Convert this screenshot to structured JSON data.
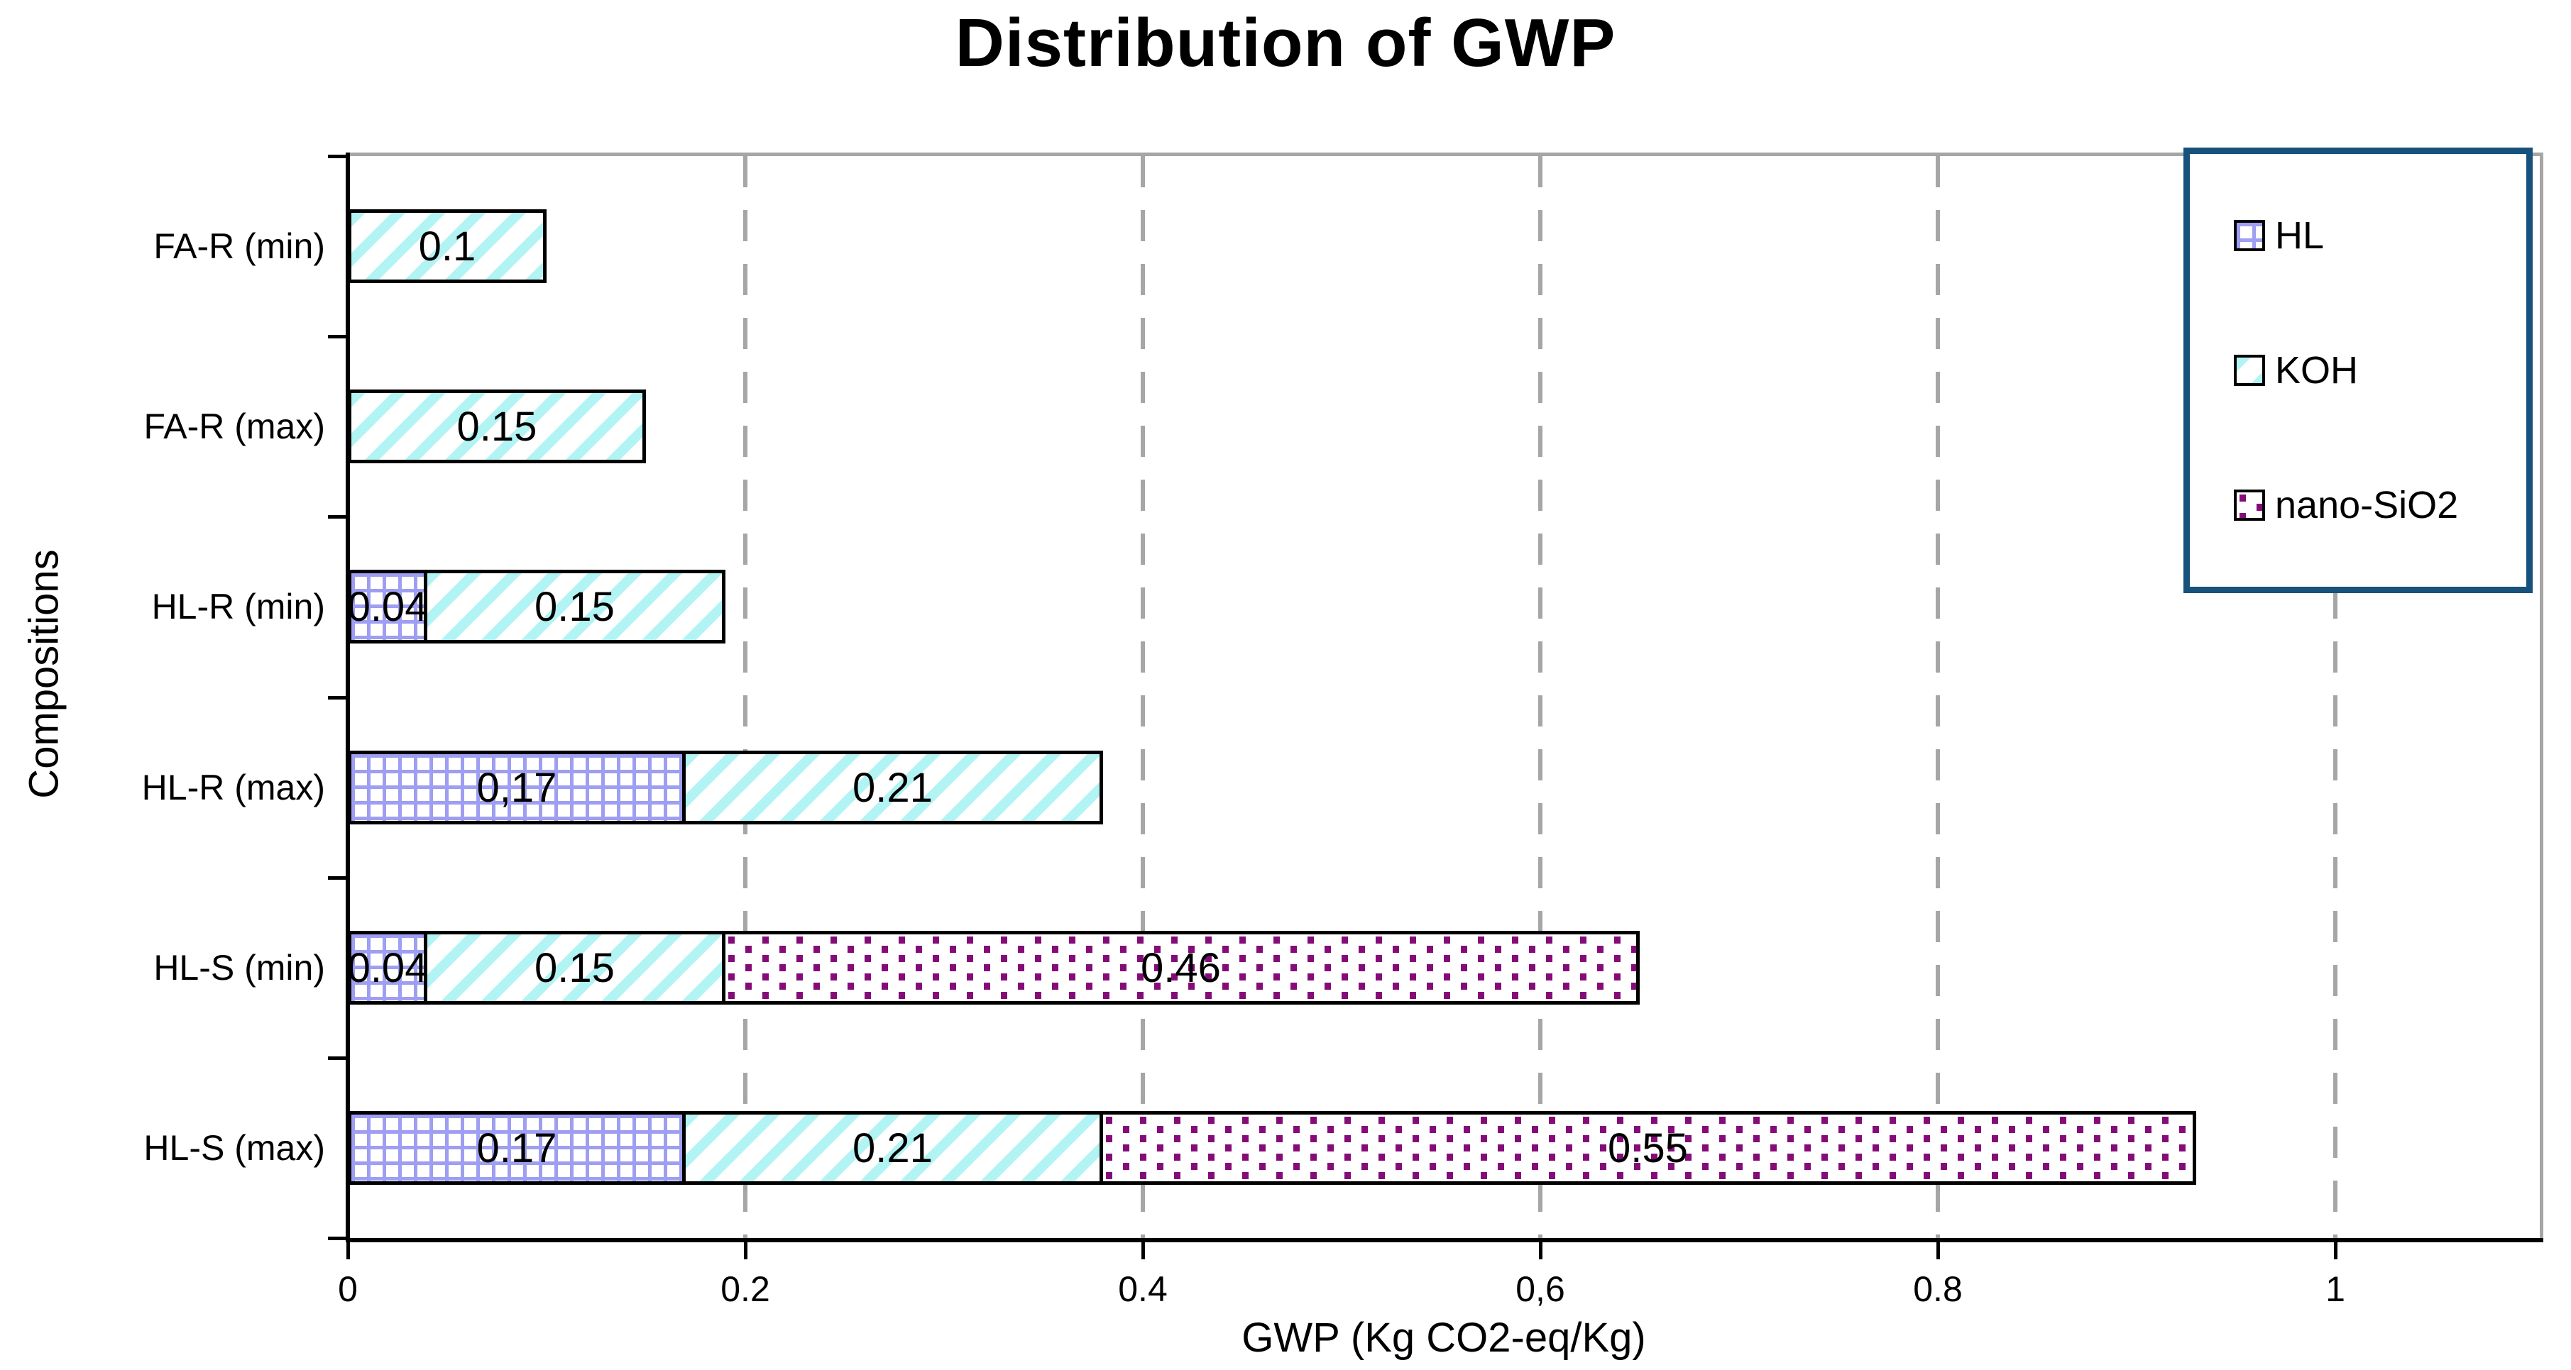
{
  "title": "Distribution of GWP",
  "axes": {
    "x_title": "GWP (Kg CO2-eq/Kg)",
    "y_title": "Compositions",
    "x_tick_labels": [
      "0",
      "0.2",
      "0.4",
      "0,6",
      "0.8",
      "1"
    ],
    "x_tick_values": [
      0,
      0.2,
      0.4,
      0.6,
      0.8,
      1
    ],
    "x_max": 1.1,
    "grid": "vertical dashed gray"
  },
  "legend": {
    "position": "top-right",
    "border_color": "#17527C",
    "items": [
      {
        "label": "HL",
        "pattern": "hl-grid"
      },
      {
        "label": "KOH",
        "pattern": "koh-stripes"
      },
      {
        "label": "nano-SiO2",
        "pattern": "nano-dots"
      }
    ]
  },
  "colors": {
    "hl_grid_line": "#9E9EF2",
    "koh_stripe": "#B2F4F4",
    "nano_dot": "#850C78",
    "pattern_background": "#FFFFFF",
    "bar_border": "#000000",
    "gridline_gray": "#A6A6A6",
    "plot_border_gray": "#A6A6A6",
    "legend_border_blue": "#17527C",
    "axis_black": "#000000"
  },
  "chart_data": {
    "type": "bar",
    "orientation": "horizontal-stacked",
    "title": "Distribution of GWP",
    "xlabel": "GWP (Kg CO2-eq/Kg)",
    "ylabel": "Compositions",
    "xlim": [
      0,
      1.1
    ],
    "legend_position": "top-right",
    "categories": [
      "FA-R (min)",
      "FA-R (max)",
      "HL-R (min)",
      "HL-R (max)",
      "HL-S (min)",
      "HL-S (max)"
    ],
    "series": [
      {
        "name": "HL",
        "values": [
          0,
          0,
          0.04,
          0.17,
          0.04,
          0.17
        ]
      },
      {
        "name": "KOH",
        "values": [
          0.1,
          0.15,
          0.15,
          0.21,
          0.15,
          0.21
        ]
      },
      {
        "name": "nano-SiO2",
        "values": [
          0,
          0,
          0,
          0,
          0.46,
          0.55
        ]
      }
    ],
    "rows": [
      {
        "category": "FA-R (min)",
        "segments": [
          {
            "series": "KOH",
            "value": 0.1,
            "label": "0.1"
          }
        ]
      },
      {
        "category": "FA-R (max)",
        "segments": [
          {
            "series": "KOH",
            "value": 0.15,
            "label": "0.15"
          }
        ]
      },
      {
        "category": "HL-R (min)",
        "segments": [
          {
            "series": "HL",
            "value": 0.04,
            "label": "0.04"
          },
          {
            "series": "KOH",
            "value": 0.15,
            "label": "0.15"
          }
        ]
      },
      {
        "category": "HL-R (max)",
        "segments": [
          {
            "series": "HL",
            "value": 0.17,
            "label": "0,17"
          },
          {
            "series": "KOH",
            "value": 0.21,
            "label": "0.21"
          }
        ]
      },
      {
        "category": "HL-S (min)",
        "segments": [
          {
            "series": "HL",
            "value": 0.04,
            "label": "0.04"
          },
          {
            "series": "KOH",
            "value": 0.15,
            "label": "0.15"
          },
          {
            "series": "nano-SiO2",
            "value": 0.46,
            "label": "0.46"
          }
        ]
      },
      {
        "category": "HL-S (max)",
        "segments": [
          {
            "series": "HL",
            "value": 0.17,
            "label": "0.17"
          },
          {
            "series": "KOH",
            "value": 0.21,
            "label": "0.21"
          },
          {
            "series": "nano-SiO2",
            "value": 0.55,
            "label": "0.55"
          }
        ]
      }
    ]
  }
}
